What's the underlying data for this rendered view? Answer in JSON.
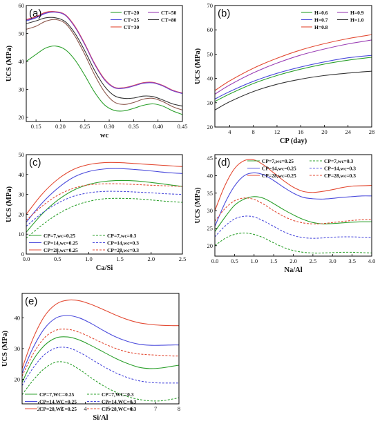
{
  "chart_data": [
    {
      "id": "a",
      "type": "line",
      "panel_label": "(a)",
      "xlabel": "wc",
      "ylabel": "UCS (MPa)",
      "xlim": [
        0.13,
        0.45
      ],
      "ylim": [
        18.5,
        60
      ],
      "xticks": [
        0.15,
        0.2,
        0.25,
        0.3,
        0.35,
        0.4,
        0.45
      ],
      "xtick_labels": [
        "0.15",
        "0.20",
        "0.25",
        "0.30",
        "0.35",
        "0.40",
        "0.45"
      ],
      "yticks": [
        20,
        30,
        40,
        50,
        60
      ],
      "legend_position": "top-right",
      "legend_columns": 2,
      "x": [
        0.13,
        0.15,
        0.17,
        0.19,
        0.21,
        0.23,
        0.25,
        0.27,
        0.29,
        0.31,
        0.33,
        0.35,
        0.37,
        0.39,
        0.41,
        0.43,
        0.45
      ],
      "series": [
        {
          "name": "CT=20",
          "color": "#2ca02c",
          "dash": "solid",
          "values": [
            40.0,
            42.5,
            44.8,
            45.5,
            44.2,
            40.5,
            35.0,
            29.0,
            24.5,
            22.5,
            22.3,
            23.2,
            24.3,
            24.8,
            24.0,
            22.3,
            21.0
          ]
        },
        {
          "name": "CT=25",
          "color": "#4b4bdc",
          "dash": "solid",
          "values": [
            54.5,
            55.6,
            57.2,
            57.6,
            56.5,
            52.2,
            46.0,
            39.0,
            33.5,
            30.6,
            30.4,
            31.2,
            32.2,
            32.3,
            31.2,
            29.5,
            28.5
          ]
        },
        {
          "name": "CT=30",
          "color": "#e34a33",
          "dash": "solid",
          "values": [
            55.0,
            56.0,
            57.6,
            57.8,
            56.7,
            52.5,
            46.3,
            39.3,
            33.8,
            30.8,
            30.6,
            31.4,
            32.4,
            32.5,
            31.4,
            29.7,
            28.7
          ]
        },
        {
          "name": "CT=50",
          "color": "#9b3fb5",
          "dash": "solid",
          "values": [
            54.8,
            55.8,
            57.4,
            57.7,
            56.6,
            52.3,
            46.1,
            39.1,
            33.6,
            30.7,
            30.5,
            31.3,
            32.3,
            32.4,
            31.3,
            29.6,
            28.6
          ]
        },
        {
          "name": "CT=80",
          "color": "#333333",
          "dash": "solid",
          "values": [
            53.5,
            54.5,
            55.6,
            55.6,
            54.2,
            50.0,
            43.8,
            36.8,
            31.2,
            27.8,
            26.8,
            26.9,
            27.6,
            27.4,
            26.2,
            24.8,
            24.0
          ]
        },
        {
          "name": "",
          "color": "#8c564b",
          "dash": "solid",
          "values": [
            51.5,
            52.6,
            54.4,
            55.0,
            53.6,
            49.0,
            42.5,
            35.2,
            29.2,
            25.5,
            24.6,
            25.3,
            26.5,
            26.8,
            25.6,
            23.8,
            22.6
          ]
        }
      ]
    },
    {
      "id": "b",
      "type": "line",
      "panel_label": "(b)",
      "xlabel": "CP (day)",
      "ylabel": "UCS (MPa)",
      "xlim": [
        1.5,
        28
      ],
      "ylim": [
        20,
        70
      ],
      "xticks": [
        4,
        8,
        12,
        16,
        20,
        24,
        28
      ],
      "xtick_labels": [
        "4",
        "8",
        "12",
        "16",
        "20",
        "24",
        "28"
      ],
      "yticks": [
        20,
        30,
        40,
        50,
        60,
        70
      ],
      "legend_position": "top-right",
      "legend_columns": 2,
      "x": [
        1.5,
        4,
        8,
        12,
        16,
        20,
        24,
        28
      ],
      "series": [
        {
          "name": "H=0.6",
          "color": "#2ca02c",
          "dash": "solid",
          "values": [
            30.5,
            33.6,
            37.9,
            41.2,
            43.8,
            45.9,
            47.5,
            48.7
          ]
        },
        {
          "name": "H=0.7",
          "color": "#4b4bdc",
          "dash": "solid",
          "values": [
            31.5,
            34.6,
            38.8,
            42.1,
            44.7,
            46.8,
            48.5,
            49.5
          ]
        },
        {
          "name": "H=0.8",
          "color": "#e34a33",
          "dash": "solid",
          "values": [
            35.0,
            39.0,
            44.2,
            48.3,
            51.7,
            54.3,
            56.4,
            58.0
          ]
        },
        {
          "name": "H=0.9",
          "color": "#9b3fb5",
          "dash": "solid",
          "values": [
            33.5,
            37.3,
            42.3,
            46.3,
            49.6,
            52.1,
            54.2,
            55.8
          ]
        },
        {
          "name": "H=1.0",
          "color": "#333333",
          "dash": "solid",
          "values": [
            27.0,
            30.4,
            34.6,
            37.6,
            39.7,
            41.2,
            42.2,
            43.0
          ]
        }
      ]
    },
    {
      "id": "c",
      "type": "line",
      "panel_label": "(c)",
      "xlabel": "Ca/Si",
      "ylabel": "UCS (MPa)",
      "xlim": [
        0,
        2.5
      ],
      "ylim": [
        0,
        50
      ],
      "xticks": [
        0.0,
        0.5,
        1.0,
        1.5,
        2.0,
        2.5
      ],
      "xtick_labels": [
        "0.0",
        "0.5",
        "1.0",
        "1.5",
        "2.0",
        "2.5"
      ],
      "yticks": [
        0,
        10,
        20,
        30,
        40,
        50
      ],
      "legend_position": "bottom-left",
      "legend_columns": 2,
      "x": [
        0,
        0.25,
        0.5,
        0.75,
        1.0,
        1.25,
        1.5,
        1.75,
        2.0,
        2.25,
        2.5
      ],
      "series": [
        {
          "name": "CP=7,wc=0.25",
          "color": "#2ca02c",
          "dash": "solid",
          "values": [
            11.0,
            20.0,
            27.0,
            32.0,
            35.0,
            36.5,
            37.0,
            36.8,
            36.0,
            35.0,
            34.0
          ]
        },
        {
          "name": "CP=14,wc=0.25",
          "color": "#4b4bdc",
          "dash": "solid",
          "values": [
            16.0,
            25.5,
            33.0,
            38.5,
            41.5,
            42.8,
            43.0,
            42.5,
            41.8,
            41.0,
            40.5
          ]
        },
        {
          "name": "CP=28,wc=0.25",
          "color": "#e34a33",
          "dash": "solid",
          "values": [
            20.0,
            30.0,
            37.5,
            42.5,
            45.0,
            46.0,
            46.0,
            45.5,
            45.0,
            44.5,
            44.0
          ]
        },
        {
          "name": "CP=7,wc=0.3",
          "color": "#2ca02c",
          "dash": "dashed",
          "values": [
            8.0,
            14.5,
            20.0,
            24.0,
            26.5,
            27.8,
            28.0,
            27.8,
            27.2,
            26.5,
            26.0
          ]
        },
        {
          "name": "CP=14,wc=0.3",
          "color": "#4b4bdc",
          "dash": "dashed",
          "values": [
            14.0,
            20.5,
            25.5,
            29.0,
            30.8,
            31.5,
            31.5,
            31.2,
            30.8,
            30.3,
            30.0
          ]
        },
        {
          "name": "CP=28,wc=0.3",
          "color": "#e34a33",
          "dash": "dashed",
          "values": [
            17.0,
            24.0,
            29.5,
            33.0,
            34.8,
            35.3,
            35.3,
            35.0,
            34.6,
            34.3,
            34.0
          ]
        }
      ]
    },
    {
      "id": "d",
      "type": "line",
      "panel_label": "(d)",
      "xlabel": "Na/Al",
      "ylabel": "UCS (MPa)",
      "xlim": [
        0,
        4
      ],
      "ylim": [
        17,
        46
      ],
      "xticks": [
        0.0,
        0.5,
        1.0,
        1.5,
        2.0,
        2.5,
        3.0,
        3.5,
        4.0
      ],
      "xtick_labels": [
        "0.0",
        "0.5",
        "1.0",
        "1.5",
        "2.0",
        "2.5",
        "3.0",
        "3.5",
        "4.0"
      ],
      "yticks": [
        20,
        25,
        30,
        35,
        40,
        45
      ],
      "legend_position": "top-right",
      "legend_columns": 2,
      "x": [
        0,
        0.25,
        0.5,
        0.75,
        1.0,
        1.25,
        1.5,
        1.75,
        2.0,
        2.25,
        2.5,
        2.75,
        3.0,
        3.25,
        3.5,
        3.75,
        4.0
      ],
      "series": [
        {
          "name": "CP=7,wc=0.25",
          "color": "#2ca02c",
          "dash": "solid",
          "values": [
            24.0,
            28.0,
            31.5,
            33.3,
            34.0,
            33.5,
            32.0,
            30.3,
            28.8,
            27.5,
            26.6,
            26.2,
            26.3,
            26.5,
            26.7,
            26.8,
            26.8
          ]
        },
        {
          "name": "CP=14,wc=0.25",
          "color": "#4b4bdc",
          "dash": "solid",
          "values": [
            25.5,
            32.0,
            37.0,
            40.0,
            40.8,
            40.2,
            38.6,
            36.7,
            35.0,
            33.8,
            33.4,
            33.3,
            33.5,
            33.8,
            34.0,
            34.2,
            34.2
          ]
        },
        {
          "name": "CP=28,wc=0.25",
          "color": "#e34a33",
          "dash": "solid",
          "values": [
            30.0,
            37.0,
            42.0,
            44.3,
            44.5,
            43.0,
            40.8,
            38.6,
            36.7,
            35.5,
            35.2,
            35.5,
            36.0,
            36.6,
            37.0,
            37.1,
            37.2
          ]
        },
        {
          "name": "CP=7,wc=0.3",
          "color": "#2ca02c",
          "dash": "dashed",
          "values": [
            20.0,
            22.0,
            23.2,
            23.6,
            23.2,
            22.2,
            20.8,
            19.5,
            18.6,
            18.1,
            17.9,
            17.9,
            18.0,
            18.1,
            18.1,
            18.0,
            17.9
          ]
        },
        {
          "name": "CP=14,wc=0.3",
          "color": "#4b4bdc",
          "dash": "dashed",
          "values": [
            22.5,
            25.5,
            27.6,
            28.4,
            28.2,
            27.0,
            25.5,
            24.0,
            22.9,
            22.3,
            22.1,
            22.2,
            22.4,
            22.5,
            22.5,
            22.4,
            22.3
          ]
        },
        {
          "name": "CP=28,wc=0.3",
          "color": "#e34a33",
          "dash": "dashed",
          "values": [
            27.0,
            30.5,
            32.8,
            33.6,
            33.2,
            31.8,
            30.0,
            28.4,
            27.2,
            26.5,
            26.2,
            26.3,
            26.6,
            26.9,
            27.2,
            27.4,
            27.5
          ]
        }
      ]
    },
    {
      "id": "e",
      "type": "line",
      "panel_label": "(e)",
      "xlabel": "Si/Al",
      "ylabel": "UCS (MPa)",
      "xlim": [
        1.3,
        8
      ],
      "ylim": [
        12,
        48
      ],
      "xticks": [
        2,
        3,
        4,
        5,
        6,
        7,
        8
      ],
      "xtick_labels": [
        "2",
        "3",
        "4",
        "5",
        "6",
        "7",
        "8"
      ],
      "yticks": [
        20,
        30,
        40
      ],
      "legend_position": "bottom-left",
      "legend_columns": 2,
      "x": [
        1.3,
        1.75,
        2.25,
        2.75,
        3.25,
        3.75,
        4.25,
        4.75,
        5.25,
        5.75,
        6.25,
        6.75,
        7.25,
        7.75,
        8.0
      ],
      "series": [
        {
          "name": "CP=7,WC=0.25",
          "color": "#2ca02c",
          "dash": "solid",
          "values": [
            19.0,
            26.0,
            31.0,
            33.5,
            33.8,
            32.8,
            31.0,
            29.0,
            27.0,
            25.3,
            24.0,
            23.5,
            23.7,
            24.3,
            24.6
          ]
        },
        {
          "name": "CP=14,WC=0.25",
          "color": "#4b4bdc",
          "dash": "solid",
          "values": [
            22.0,
            30.0,
            36.5,
            40.0,
            40.8,
            40.0,
            38.2,
            36.0,
            34.0,
            32.5,
            31.5,
            31.1,
            31.1,
            31.2,
            31.2
          ]
        },
        {
          "name": "CP=28,WC=0.25",
          "color": "#e34a33",
          "dash": "solid",
          "values": [
            23.5,
            33.0,
            40.5,
            44.5,
            45.8,
            45.6,
            44.4,
            42.8,
            41.1,
            39.6,
            38.5,
            37.9,
            37.6,
            37.5,
            37.5
          ]
        },
        {
          "name": "CP=7,WC=0.3",
          "color": "#2ca02c",
          "dash": "dashed",
          "values": [
            15.0,
            19.5,
            23.5,
            25.6,
            25.3,
            23.2,
            20.5,
            18.0,
            16.0,
            14.5,
            13.5,
            13.0,
            13.0,
            13.6,
            14.0
          ]
        },
        {
          "name": "CP=14,WC=0.3",
          "color": "#4b4bdc",
          "dash": "dashed",
          "values": [
            18.0,
            23.5,
            28.0,
            30.2,
            30.3,
            28.8,
            26.6,
            24.3,
            22.3,
            20.7,
            19.6,
            19.0,
            18.8,
            18.8,
            18.8
          ]
        },
        {
          "name": "CP=28,WC=0.3",
          "color": "#e34a33",
          "dash": "dashed",
          "values": [
            21.0,
            28.0,
            33.5,
            36.0,
            36.3,
            35.3,
            33.6,
            31.8,
            30.2,
            29.0,
            28.3,
            28.0,
            27.8,
            27.6,
            27.6
          ]
        }
      ]
    }
  ]
}
